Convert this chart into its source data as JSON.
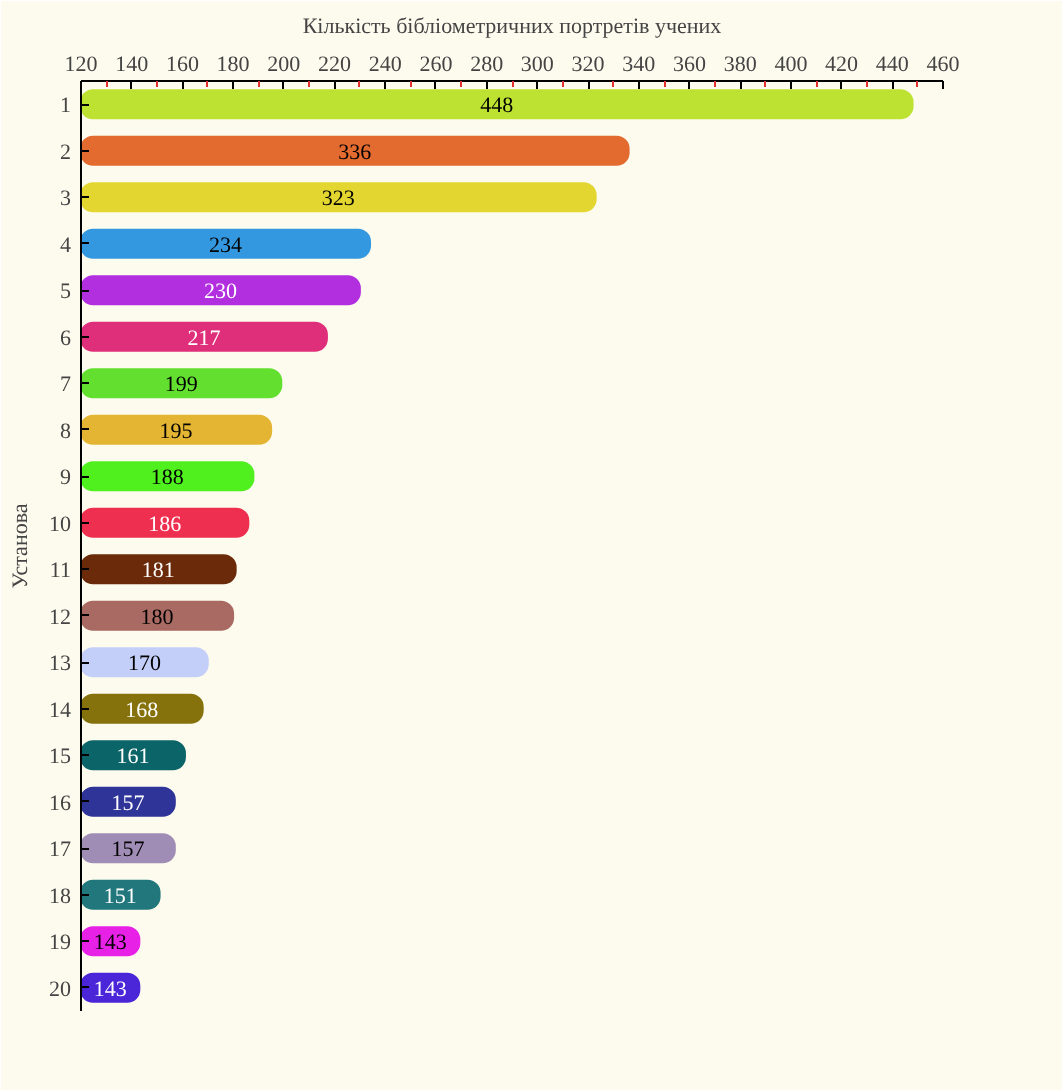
{
  "chart_data": {
    "type": "bar",
    "orientation": "horizontal",
    "title": "Кількість бібліометричних портретів учених",
    "ylabel": "Установа",
    "categories": [
      "1",
      "2",
      "3",
      "4",
      "5",
      "6",
      "7",
      "8",
      "9",
      "10",
      "11",
      "12",
      "13",
      "14",
      "15",
      "16",
      "17",
      "18",
      "19",
      "20"
    ],
    "values": [
      448,
      336,
      323,
      234,
      230,
      217,
      199,
      195,
      188,
      186,
      181,
      180,
      170,
      168,
      161,
      157,
      157,
      151,
      143,
      143
    ],
    "colors": [
      "#bde232",
      "#e36b30",
      "#e3d630",
      "#3498e0",
      "#b22fe0",
      "#df2f7a",
      "#63e02f",
      "#e3b532",
      "#4ff01e",
      "#ef2f4f",
      "#6b2b0b",
      "#a86a62",
      "#c4cff9",
      "#86720c",
      "#0b6468",
      "#2f3598",
      "#a08db5",
      "#22777c",
      "#e821e6",
      "#4b25d8"
    ],
    "xlim": [
      120,
      460
    ],
    "xticks": [
      120,
      140,
      160,
      180,
      200,
      220,
      240,
      260,
      280,
      300,
      320,
      340,
      360,
      380,
      400,
      420,
      440,
      460
    ],
    "data_labels": true
  }
}
